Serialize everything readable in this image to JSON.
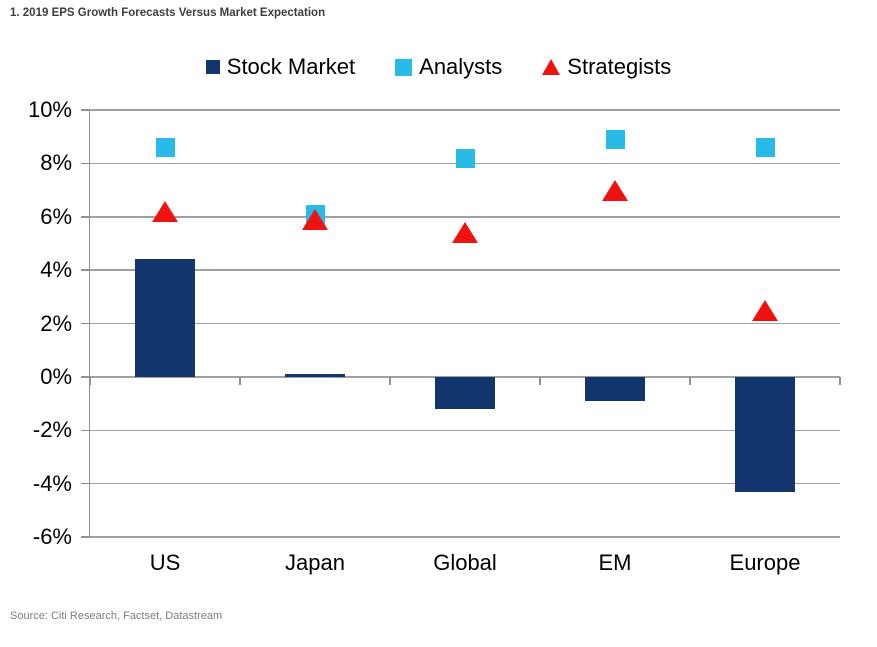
{
  "title": "1. 2019 EPS Growth Forecasts Versus Market Expectation",
  "source": "Source: Citi Research, Factset, Datastream",
  "colors": {
    "stock_market": "#12356e",
    "analysts": "#29bbe8",
    "strategists": "#ee1310",
    "gridline": "#a0a0a0"
  },
  "chart_data": {
    "type": "bar",
    "subtype": "bar-with-scatter-markers",
    "title": "1. 2019 EPS Growth Forecasts Versus Market Expectation",
    "categories": [
      "US",
      "Japan",
      "Global",
      "EM",
      "Europe"
    ],
    "series": [
      {
        "name": "Stock Market",
        "marker": "bar",
        "color": "#12356e",
        "values": [
          4.4,
          0.1,
          -1.2,
          -0.9,
          -4.3
        ]
      },
      {
        "name": "Analysts",
        "marker": "square",
        "color": "#29bbe8",
        "values": [
          8.6,
          6.1,
          8.2,
          8.9,
          8.6
        ]
      },
      {
        "name": "Strategists",
        "marker": "triangle",
        "color": "#ee1310",
        "values": [
          6.2,
          5.9,
          5.4,
          7.0,
          2.5
        ]
      }
    ],
    "ylim": [
      -6,
      10
    ],
    "yticks": [
      10,
      8,
      6,
      4,
      2,
      0,
      -2,
      -4,
      -6
    ],
    "ytick_suffix": "%",
    "xlabel": "",
    "ylabel": "",
    "grid": true,
    "legend_position": "top"
  }
}
